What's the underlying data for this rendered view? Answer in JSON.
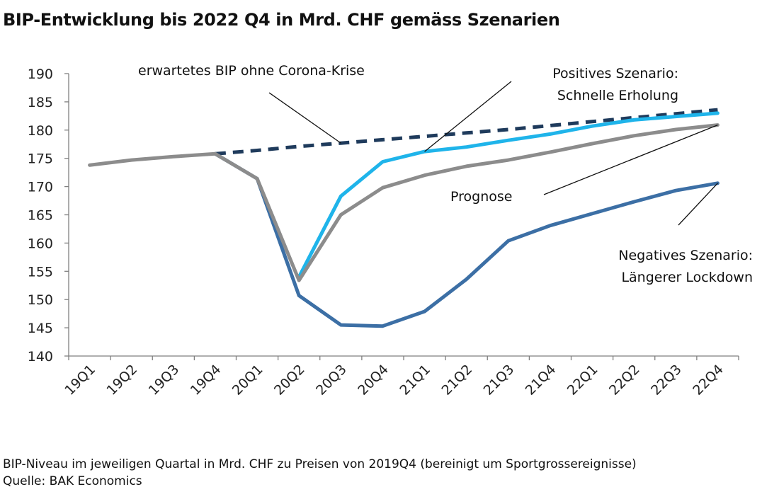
{
  "title": "BIP-Entwicklung bis 2022 Q4 in Mrd. CHF gemäss Szenarien",
  "footer": {
    "note": "BIP-Niveau im jeweiligen Quartal in Mrd. CHF zu Preisen von 2019Q4 (bereinigt um Sportgrossereignisse)",
    "source": "Quelle: BAK Economics"
  },
  "chart_data": {
    "type": "line",
    "categories": [
      "19Q1",
      "19Q2",
      "19Q3",
      "19Q4",
      "20Q1",
      "20Q2",
      "20Q3",
      "20Q4",
      "21Q1",
      "21Q2",
      "21Q3",
      "21Q4",
      "22Q1",
      "22Q2",
      "22Q3",
      "22Q4"
    ],
    "ylim": [
      140,
      190
    ],
    "yticks": [
      140,
      145,
      150,
      155,
      160,
      165,
      170,
      175,
      180,
      185,
      190
    ],
    "grid": false,
    "legend": "none",
    "series": [
      {
        "key": "expected",
        "color": "#1f3b5c",
        "dashed": true,
        "values": [
          null,
          null,
          null,
          175.8,
          176.4,
          177.1,
          177.7,
          178.3,
          178.9,
          179.5,
          180.1,
          180.8,
          181.5,
          182.2,
          182.9,
          183.6
        ]
      },
      {
        "key": "positive",
        "color": "#1fb4ea",
        "dashed": false,
        "values": [
          null,
          null,
          null,
          null,
          null,
          154.0,
          168.3,
          174.4,
          176.2,
          177.0,
          178.2,
          179.3,
          180.7,
          181.8,
          182.4,
          183.0
        ]
      },
      {
        "key": "negative",
        "color": "#3c6fa5",
        "dashed": false,
        "values": [
          null,
          null,
          null,
          175.8,
          171.4,
          150.7,
          145.5,
          145.3,
          147.9,
          153.6,
          160.4,
          163.1,
          165.2,
          167.3,
          169.3,
          170.6
        ]
      },
      {
        "key": "prognose",
        "color": "#8c8c8c",
        "dashed": false,
        "values": [
          173.8,
          174.7,
          175.3,
          175.8,
          171.4,
          153.4,
          165.0,
          169.8,
          172.0,
          173.6,
          174.7,
          176.1,
          177.6,
          179.0,
          180.1,
          180.9
        ]
      }
    ],
    "annotations": [
      {
        "key": "expected",
        "lines": [
          "erwartetes BIP ohne Corona-Krise"
        ],
        "anchor": "start",
        "target": {
          "x": "20Q3",
          "y": 177.7
        }
      },
      {
        "key": "positive",
        "lines": [
          "Positives Szenario:",
          "Schnelle Erholung"
        ],
        "anchor": "end",
        "target": {
          "x": "21Q1",
          "y": 176.2
        }
      },
      {
        "key": "prognose",
        "lines": [
          "Prognose"
        ],
        "anchor": "start",
        "target": {
          "x": "22Q4",
          "y": 180.9
        }
      },
      {
        "key": "negative",
        "lines": [
          "Negatives Szenario:",
          "Längerer Lockdown"
        ],
        "anchor": "end",
        "target": {
          "x": "22Q4",
          "y": 170.6
        }
      }
    ]
  }
}
